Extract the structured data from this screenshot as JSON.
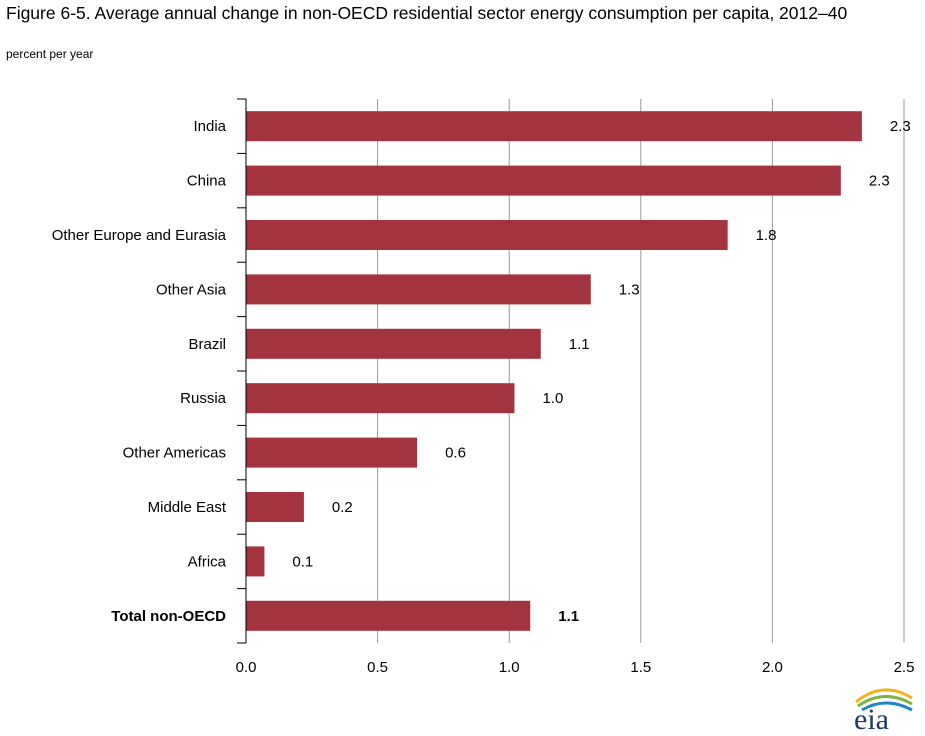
{
  "header": {
    "title": "Figure 6-5. Average annual change in non-OECD residential sector energy consumption per capita, 2012–40",
    "subtitle": "percent per year"
  },
  "logo": {
    "text": "eia",
    "icon": "eia-logo-icon"
  },
  "chart_data": {
    "type": "bar",
    "orientation": "horizontal",
    "categories": [
      "India",
      "China",
      "Other Europe and Eurasia",
      "Other Asia",
      "Brazil",
      "Russia",
      "Other Americas",
      "Middle East",
      "Africa",
      "Total non-OECD"
    ],
    "values": [
      2.34,
      2.26,
      1.83,
      1.31,
      1.12,
      1.02,
      0.65,
      0.22,
      0.07,
      1.08
    ],
    "data_labels": [
      "2.3",
      "2.3",
      "1.8",
      "1.3",
      "1.1",
      "1.0",
      "0.6",
      "0.2",
      "0.1",
      "1.1"
    ],
    "bold_categories": [
      "Total non-OECD"
    ],
    "xlim": [
      0,
      2.5
    ],
    "xticks": [
      "0.0",
      "0.5",
      "1.0",
      "1.5",
      "2.0",
      "2.5"
    ],
    "grid": "vertical",
    "bar_color": "#a3333f",
    "title": "Figure 6-5. Average annual change in non-OECD residential sector energy consumption per capita, 2012–40",
    "xlabel": "",
    "ylabel": "percent per year"
  }
}
